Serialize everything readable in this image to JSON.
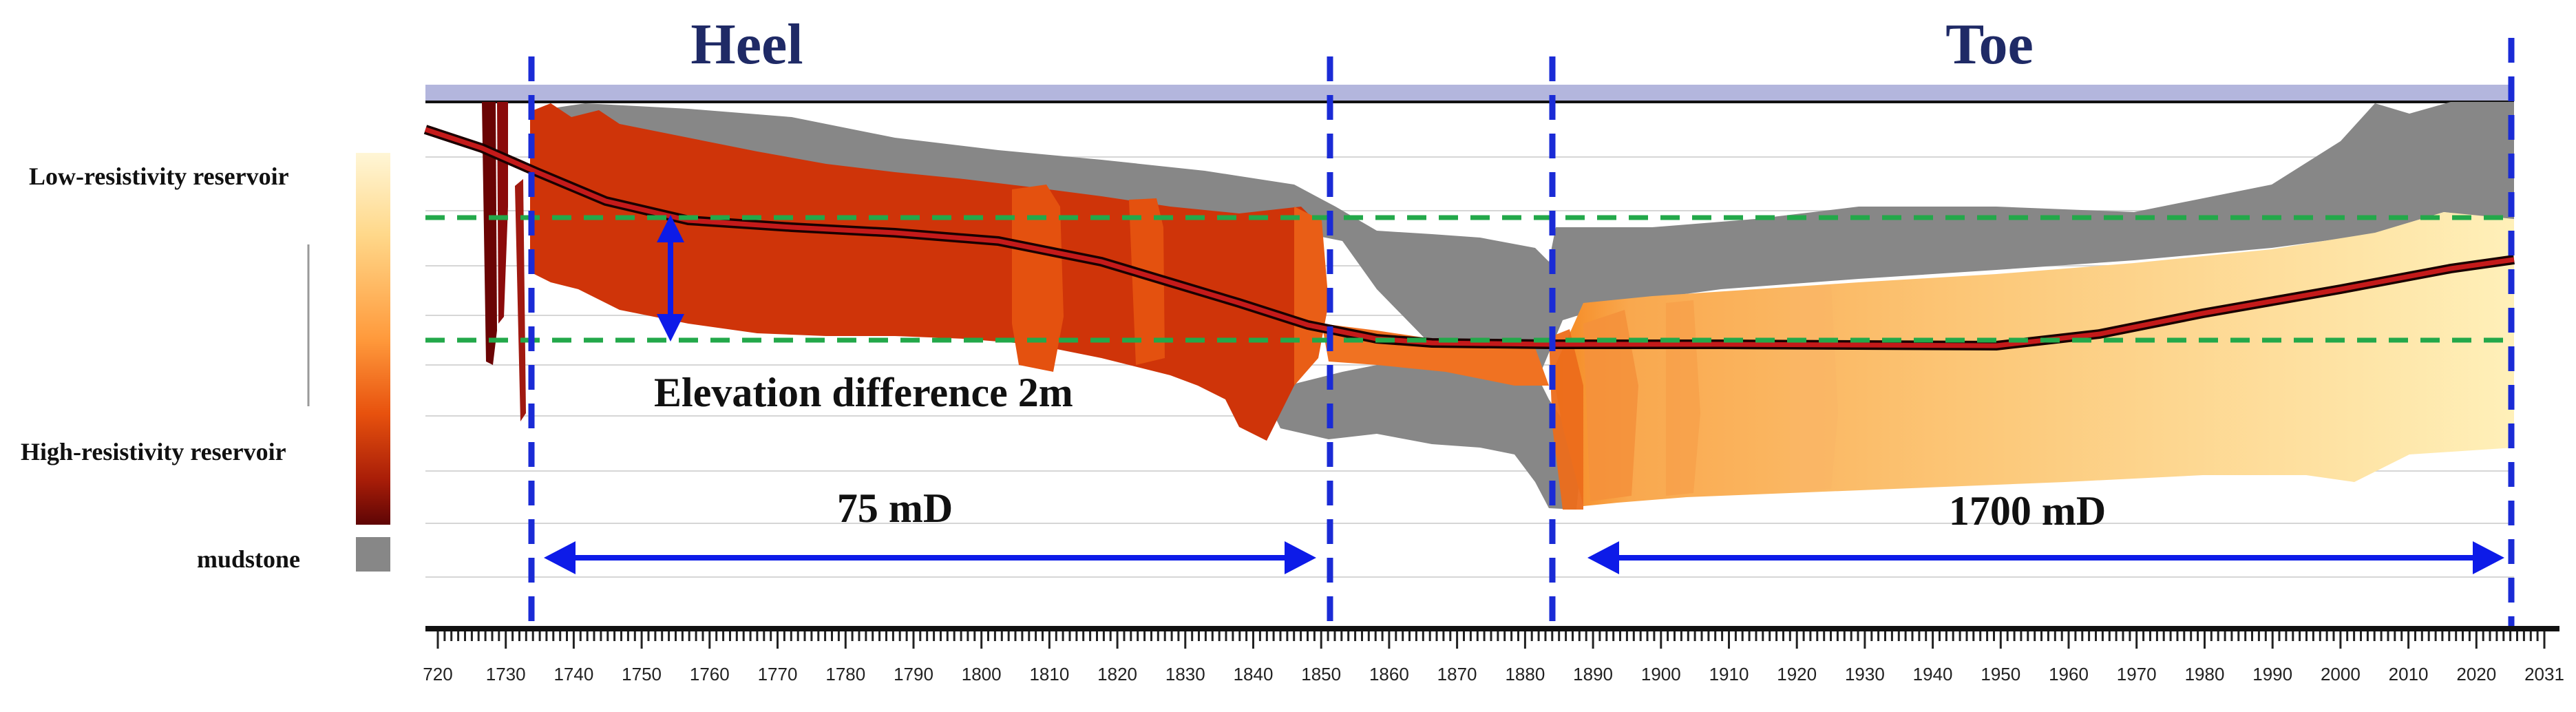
{
  "labels": {
    "heel": "Heel",
    "toe": "Toe",
    "elevation": "Elevation difference 2m",
    "perm_left": "75 mD",
    "perm_right": "1700 mD"
  },
  "legend": {
    "low": "Low-resistivity reservoir",
    "high": "High-resistivity reservoir",
    "mud": "mudstone"
  },
  "colors": {
    "band": "#b3b6dd",
    "mudstone": "#878787",
    "wellbore": "#c41a1a",
    "divider": "#1a2bd6",
    "horizon": "#23a84a",
    "arrow": "#0d1be8"
  },
  "axis": {
    "ticks": [
      "720",
      "1730",
      "1740",
      "1750",
      "1760",
      "1770",
      "1780",
      "1790",
      "1800",
      "1810",
      "1820",
      "1830",
      "1840",
      "1850",
      "1860",
      "1870",
      "1880",
      "1890",
      "1900",
      "1910",
      "1920",
      "1930",
      "1940",
      "1950",
      "1960",
      "1970",
      "1980",
      "1990",
      "2000",
      "2010",
      "2020",
      "2031"
    ]
  }
}
